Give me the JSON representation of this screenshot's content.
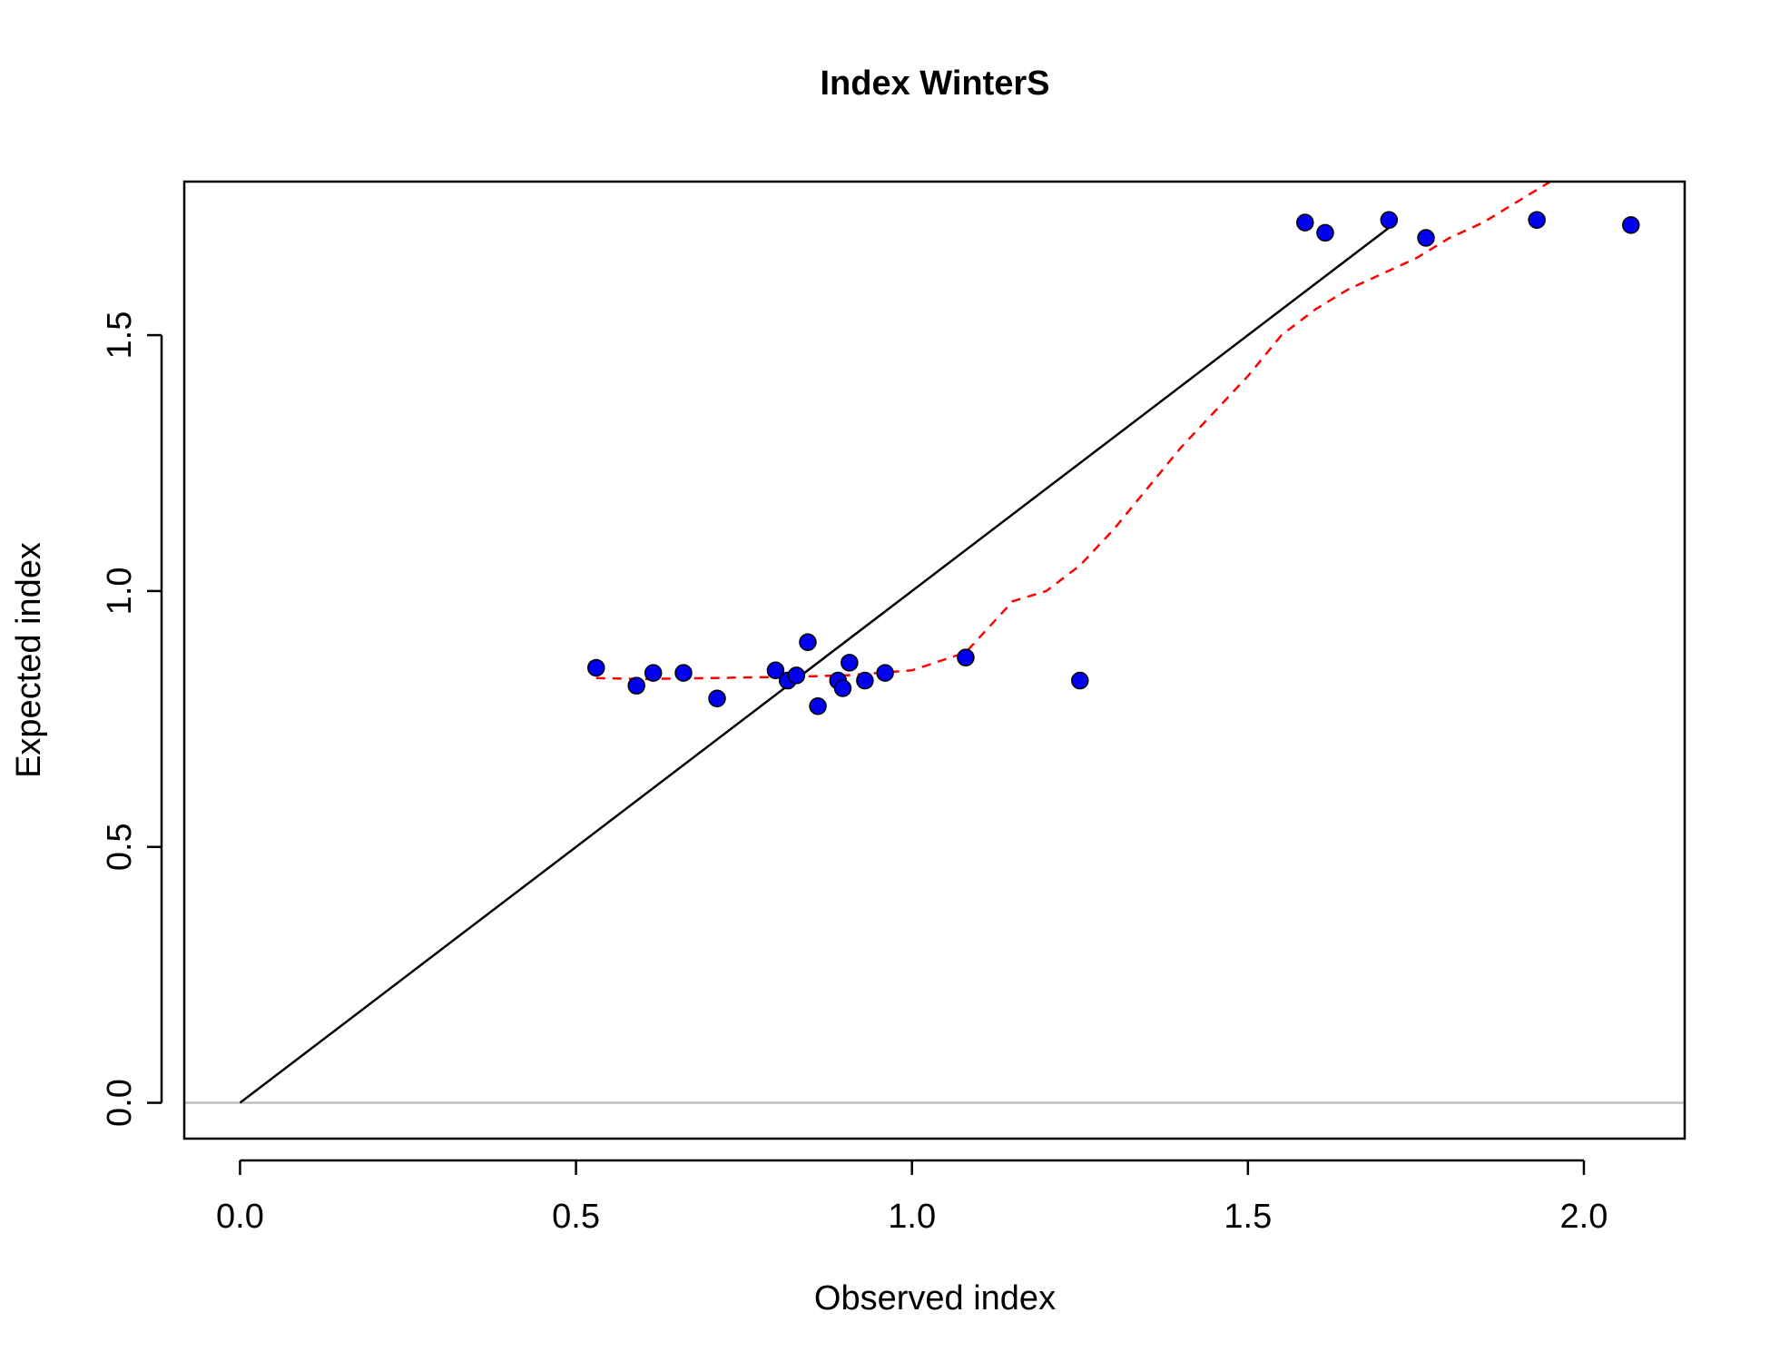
{
  "chart_data": {
    "type": "scatter",
    "title": "Index WinterS",
    "xlabel": "Observed index",
    "ylabel": "Expected index",
    "xlim": [
      -0.083,
      2.15
    ],
    "ylim": [
      -0.07,
      1.8
    ],
    "x_ticks": [
      0.0,
      0.5,
      1.0,
      1.5,
      2.0
    ],
    "x_tick_labels": [
      "0.0",
      "0.5",
      "1.0",
      "1.5",
      "2.0"
    ],
    "y_ticks": [
      0.0,
      0.5,
      1.0,
      1.5
    ],
    "y_tick_labels": [
      "0.0",
      "0.5",
      "1.0",
      "1.5"
    ],
    "grid": false,
    "reference_hline": {
      "y": 0.0,
      "color": "#bdbdbd"
    },
    "points": {
      "color": "#0000ee",
      "edge_color": "#000000",
      "x": [
        0.53,
        0.59,
        0.615,
        0.66,
        0.71,
        0.797,
        0.815,
        0.828,
        0.845,
        0.86,
        0.89,
        0.897,
        0.907,
        0.93,
        0.96,
        1.08,
        1.25,
        1.585,
        1.615,
        1.71,
        1.765,
        1.93,
        2.07
      ],
      "y": [
        0.85,
        0.815,
        0.84,
        0.84,
        0.79,
        0.845,
        0.825,
        0.835,
        0.9,
        0.775,
        0.825,
        0.81,
        0.86,
        0.825,
        0.84,
        0.87,
        0.825,
        1.72,
        1.7,
        1.725,
        1.69,
        1.725,
        1.715
      ]
    },
    "identity_line": {
      "color": "#000000",
      "x": [
        0.0,
        1.72
      ],
      "y": [
        0.0,
        1.72
      ]
    },
    "smooth_line": {
      "color": "#ff0000",
      "style": "dashed",
      "x": [
        0.53,
        0.6,
        0.7,
        0.8,
        0.9,
        1.0,
        1.08,
        1.15,
        1.2,
        1.25,
        1.3,
        1.35,
        1.4,
        1.45,
        1.5,
        1.55,
        1.6,
        1.65,
        1.7,
        1.75,
        1.8,
        1.85,
        1.9,
        1.95
      ],
      "y": [
        0.83,
        0.828,
        0.83,
        0.832,
        0.835,
        0.845,
        0.88,
        0.98,
        1.0,
        1.05,
        1.12,
        1.2,
        1.28,
        1.35,
        1.42,
        1.5,
        1.55,
        1.59,
        1.62,
        1.65,
        1.69,
        1.72,
        1.76,
        1.8
      ]
    }
  }
}
